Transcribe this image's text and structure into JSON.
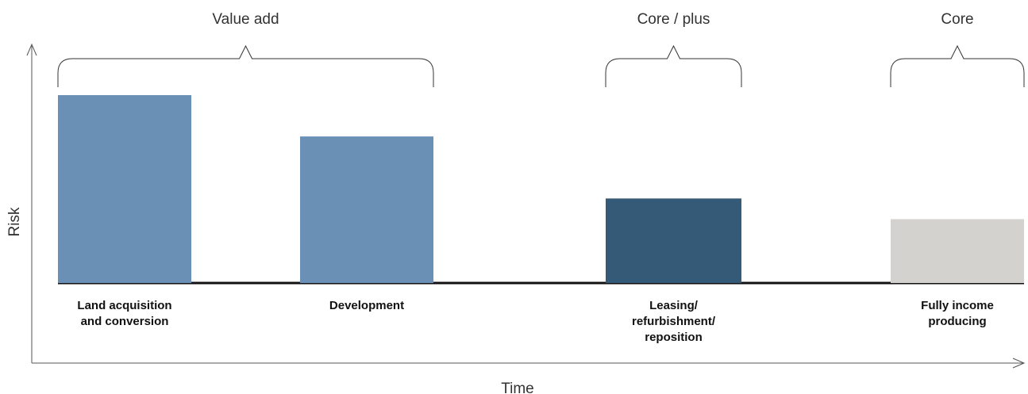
{
  "chart_data": {
    "type": "bar",
    "title": "",
    "xlabel": "Time",
    "ylabel": "Risk",
    "ylim": [
      0,
      100
    ],
    "grid": false,
    "categories": [
      "Land acquisition and conversion",
      "Development",
      "Leasing/ refurbishment/ reposition",
      "Fully income producing"
    ],
    "values": [
      100,
      78,
      45,
      34
    ],
    "colors": [
      "#6a90b6",
      "#6a90b6",
      "#355a77",
      "#d4d2cf"
    ],
    "groups": [
      {
        "label": "Value add",
        "categories": [
          "Land acquisition and conversion",
          "Development"
        ]
      },
      {
        "label": "Core / plus",
        "categories": [
          "Leasing/ refurbishment/ reposition"
        ]
      },
      {
        "label": "Core",
        "categories": [
          "Fully income producing"
        ]
      }
    ],
    "category_label_lines": [
      [
        "Land acquisition",
        "and conversion"
      ],
      [
        "Development"
      ],
      [
        "Leasing/",
        "refurbishment/",
        "reposition"
      ],
      [
        "Fully income",
        "producing"
      ]
    ]
  }
}
